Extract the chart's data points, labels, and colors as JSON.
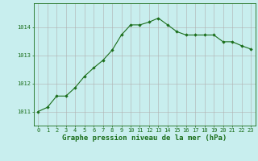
{
  "x": [
    0,
    1,
    2,
    3,
    4,
    5,
    6,
    7,
    8,
    9,
    10,
    11,
    12,
    13,
    14,
    15,
    16,
    17,
    18,
    19,
    20,
    21,
    22,
    23
  ],
  "y": [
    1011.0,
    1011.15,
    1011.55,
    1011.55,
    1011.85,
    1012.25,
    1012.55,
    1012.82,
    1013.18,
    1013.72,
    1014.08,
    1014.08,
    1014.18,
    1014.32,
    1014.08,
    1013.84,
    1013.72,
    1013.72,
    1013.72,
    1013.72,
    1013.48,
    1013.48,
    1013.34,
    1013.22
  ],
  "line_color": "#1a6e1a",
  "marker": "D",
  "marker_size": 1.8,
  "bg_color": "#c8eeee",
  "grid_color": "#b0b0b0",
  "xlabel": "Graphe pression niveau de la mer (hPa)",
  "xlabel_fontsize": 6.5,
  "tick_fontsize": 5.0,
  "ylim": [
    1010.5,
    1014.85
  ],
  "yticks": [
    1011,
    1012,
    1013,
    1014
  ],
  "xticks": [
    0,
    1,
    2,
    3,
    4,
    5,
    6,
    7,
    8,
    9,
    10,
    11,
    12,
    13,
    14,
    15,
    16,
    17,
    18,
    19,
    20,
    21,
    22,
    23
  ]
}
